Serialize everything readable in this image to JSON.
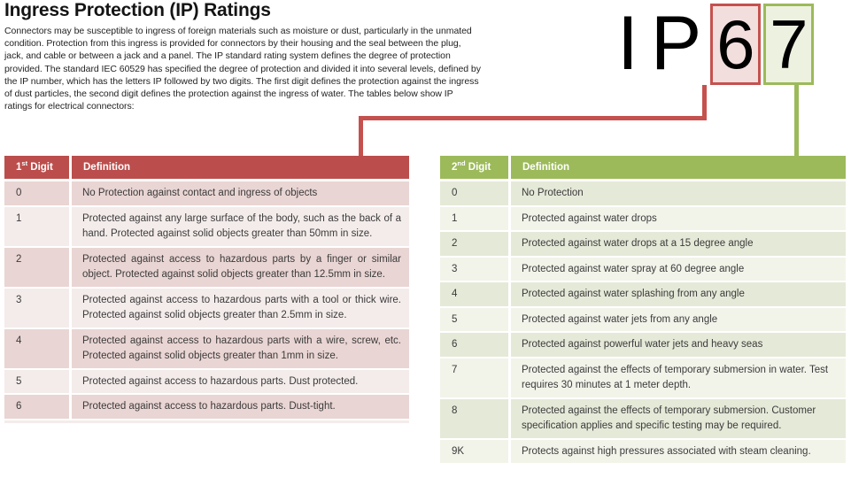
{
  "title": "Ingress Protection (IP) Ratings",
  "intro": "Connectors may be susceptible to ingress of foreign materials such as moisture or dust, particularly in the unmated condition. Protection from this ingress is provided for connectors by their housing and the seal between the plug, jack, and cable or between a jack and a panel. The IP standard rating system defines the degree of protection provided. The standard IEC 60529 has specified the degree of protection and divided it into several levels, defined by the IP number, which has the letters IP followed by two digits. The first digit defines the protection against the ingress of dust particles, the second digit defines the protection against the ingress of water. The tables below show IP ratings for electrical connectors:",
  "graphic": {
    "letter_i": "I",
    "letter_p": "P",
    "first_digit": "6",
    "second_digit": "7"
  },
  "colors": {
    "red_accent": "#bb4e4c",
    "red_line": "#c5514e",
    "red_box_fill": "#f3dede",
    "red_band_dark": "#e9d5d3",
    "red_band_light": "#f4eceb",
    "green_accent": "#9cba5a",
    "green_box_fill": "#edf2e0",
    "green_band_dark": "#e5e9d8",
    "green_band_light": "#f2f4ea",
    "text_dark": "#3b3b3b"
  },
  "first_digit_table": {
    "header": {
      "digit_num": "1",
      "digit_sup": "st",
      "digit_rest": " Digit",
      "definition": "Definition"
    },
    "rows": [
      {
        "digit": "0",
        "definition": "No Protection against contact and ingress of objects"
      },
      {
        "digit": "1",
        "definition": "Protected against any large surface of the body, such as the back of a hand. Protected against solid objects greater than 50mm in size."
      },
      {
        "digit": "2",
        "definition": "Protected against access to hazardous parts by a finger or similar object. Protected against solid objects greater than 12.5mm in size."
      },
      {
        "digit": "3",
        "definition": "Protected against access to hazardous parts with a tool or thick wire. Protected against solid objects greater than 2.5mm in size."
      },
      {
        "digit": "4",
        "definition": "Protected against access to hazardous parts with a wire, screw, etc. Protected against solid objects greater than 1mm in size."
      },
      {
        "digit": "5",
        "definition": "Protected against access to hazardous parts. Dust protected."
      },
      {
        "digit": "6",
        "definition": "Protected against access to hazardous parts. Dust-tight."
      }
    ]
  },
  "second_digit_table": {
    "header": {
      "digit_num": "2",
      "digit_sup": "nd",
      "digit_rest": " Digit",
      "definition": "Definition"
    },
    "rows": [
      {
        "digit": "0",
        "definition": "No Protection"
      },
      {
        "digit": "1",
        "definition": "Protected against water drops"
      },
      {
        "digit": "2",
        "definition": "Protected against water drops at a 15 degree angle"
      },
      {
        "digit": "3",
        "definition": "Protected against water spray at 60 degree angle"
      },
      {
        "digit": "4",
        "definition": "Protected against water splashing from any angle"
      },
      {
        "digit": "5",
        "definition": "Protected against water jets from any angle"
      },
      {
        "digit": "6",
        "definition": "Protected against powerful water jets and heavy seas"
      },
      {
        "digit": "7",
        "definition": "Protected against the effects of temporary submersion in water. Test requires 30 minutes at 1 meter depth."
      },
      {
        "digit": "8",
        "definition": "Protected against the effects of temporary submersion. Customer specification applies and specific testing may be required."
      },
      {
        "digit": "9K",
        "definition": "Protects against high pressures associated with steam cleaning."
      }
    ]
  }
}
